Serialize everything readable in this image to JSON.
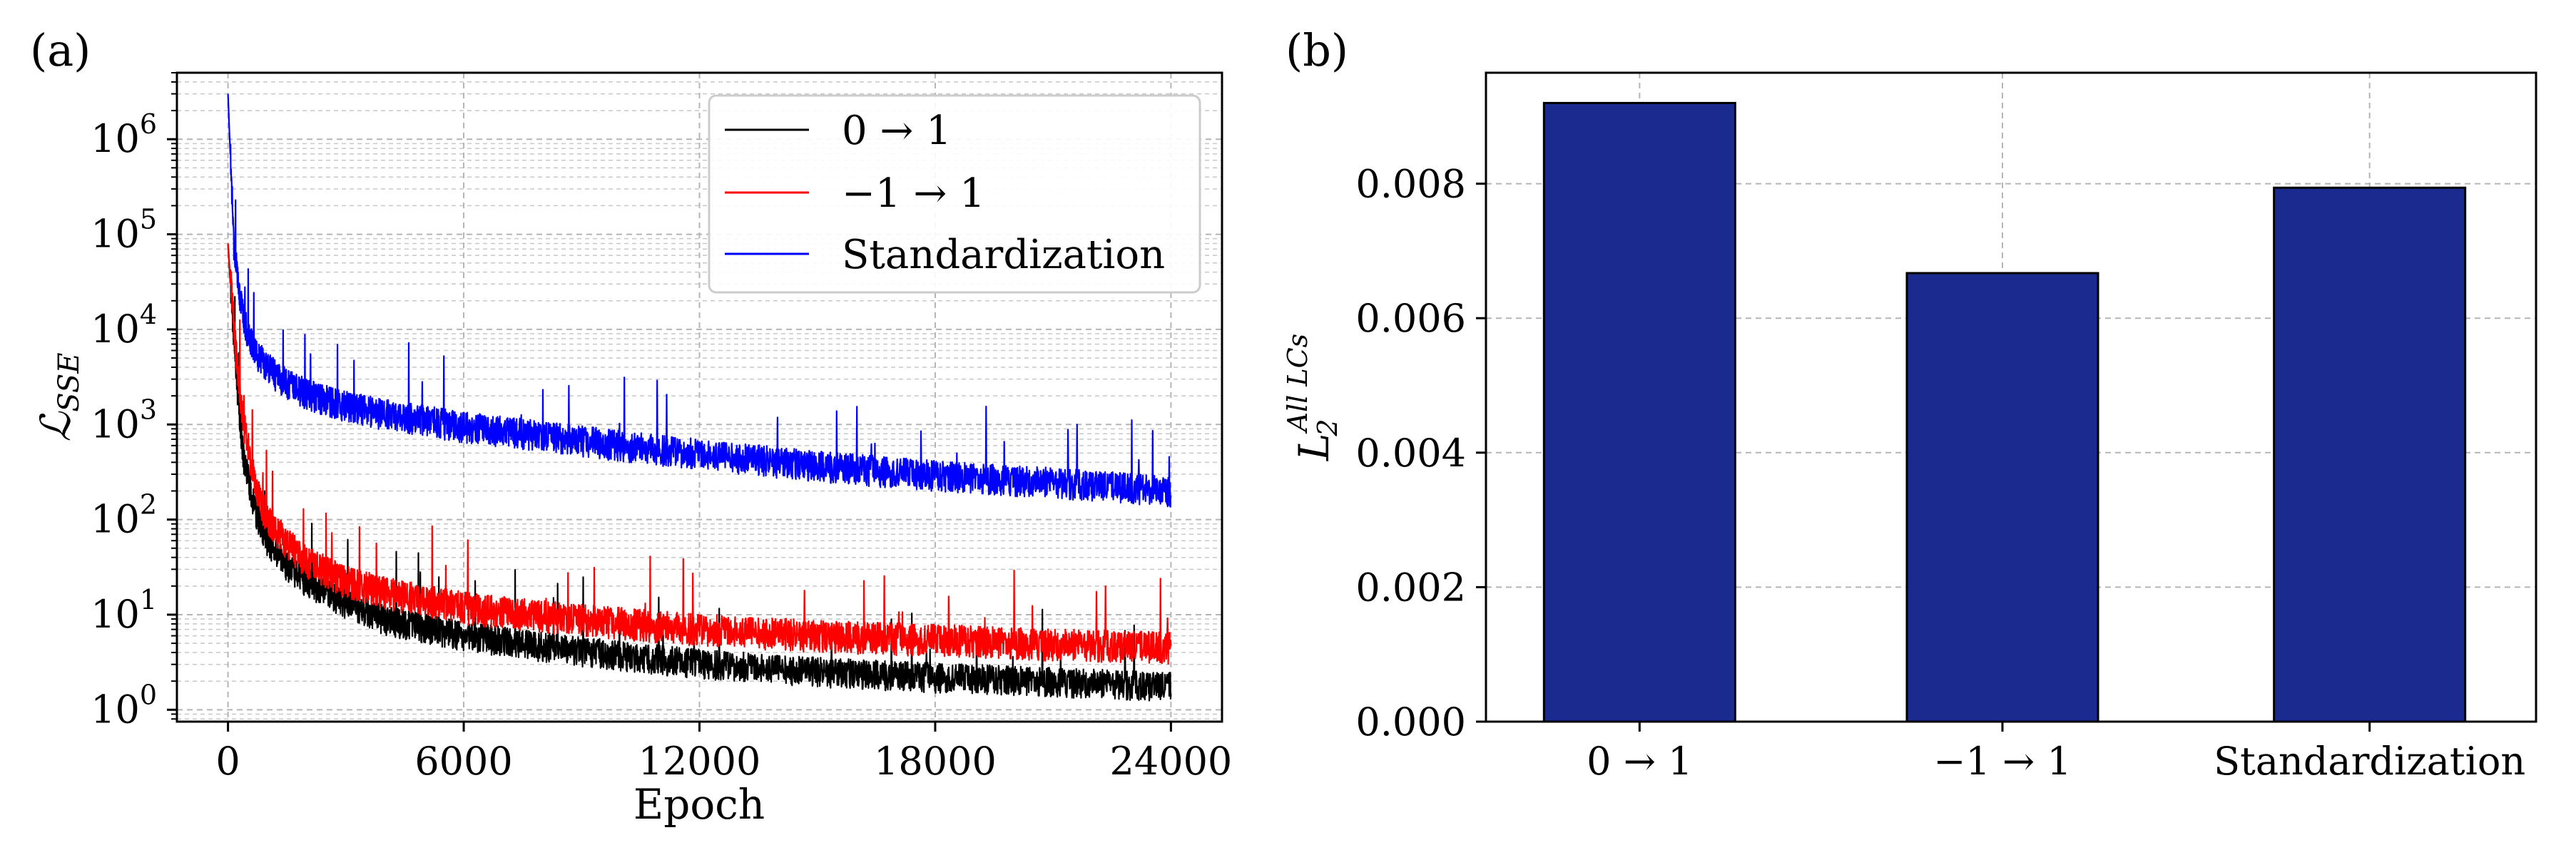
{
  "chart_data": [
    {
      "panel": "(a)",
      "type": "line",
      "xlabel": "Epoch",
      "ylabel": "ℒ",
      "ylabel_sub": "SSE",
      "yscale": "log",
      "xlim": [
        -1300,
        25300
      ],
      "ylim": [
        0.75,
        5000000
      ],
      "xticks": [
        0,
        6000,
        12000,
        18000,
        24000
      ],
      "xtick_labels": [
        "0",
        "6000",
        "12000",
        "18000",
        "24000"
      ],
      "yticks": [
        1,
        10,
        100,
        1000,
        10000,
        100000,
        1000000
      ],
      "ytick_labels": [
        {
          "base": "10",
          "exp": "0"
        },
        {
          "base": "10",
          "exp": "1"
        },
        {
          "base": "10",
          "exp": "2"
        },
        {
          "base": "10",
          "exp": "3"
        },
        {
          "base": "10",
          "exp": "4"
        },
        {
          "base": "10",
          "exp": "5"
        },
        {
          "base": "10",
          "exp": "6"
        }
      ],
      "grid": true,
      "legend_position": "top-right",
      "series": [
        {
          "name": "0 → 1",
          "legend_label": "0 → 1",
          "color": "#000000",
          "x": [
            0,
            200,
            400,
            700,
            1000,
            1500,
            2000,
            3000,
            4000,
            6000,
            8000,
            10000,
            12000,
            15000,
            18000,
            21000,
            24000
          ],
          "y": [
            80000,
            3000,
            400,
            110,
            55,
            30,
            20,
            12,
            8,
            5.5,
            4.2,
            3.4,
            2.8,
            2.3,
            2.0,
            1.8,
            1.6
          ],
          "noise": 0.55
        },
        {
          "name": "-1 → 1",
          "legend_label": "−1 → 1",
          "color": "#ff0000",
          "x": [
            0,
            200,
            400,
            700,
            1000,
            1500,
            2000,
            3000,
            4000,
            6000,
            8000,
            10000,
            12000,
            15000,
            18000,
            21000,
            24000
          ],
          "y": [
            80000,
            5000,
            900,
            200,
            90,
            50,
            32,
            20,
            15,
            10.5,
            8.5,
            7.2,
            6.2,
            5.3,
            4.8,
            4.3,
            4.0
          ],
          "noise": 0.65
        },
        {
          "name": "Standardization",
          "legend_label": "Standardization",
          "color": "#0000ff",
          "x": [
            0,
            150,
            300,
            500,
            800,
            1200,
            1600,
            2000,
            3000,
            4000,
            6000,
            8000,
            10000,
            12000,
            15000,
            18000,
            21000,
            24000
          ],
          "y": [
            3000000,
            70000,
            20000,
            8000,
            4500,
            3000,
            2300,
            1900,
            1400,
            1150,
            850,
            680,
            540,
            440,
            330,
            260,
            220,
            180
          ],
          "noise": 0.6
        }
      ]
    },
    {
      "panel": "(b)",
      "type": "bar",
      "categories": [
        "0 → 1",
        "−1 → 1",
        "Standardization"
      ],
      "values": [
        0.0092,
        0.00667,
        0.00794
      ],
      "bar_color": "#1a2a8f",
      "ylabel": "L",
      "ylabel_sub": "2",
      "ylabel_sup": "All LCs",
      "xlabel": "",
      "ylim": [
        0,
        0.00965
      ],
      "yticks": [
        0,
        0.002,
        0.004,
        0.006,
        0.008
      ],
      "ytick_labels": [
        "0.000",
        "0.002",
        "0.004",
        "0.006",
        "0.008"
      ],
      "grid": true
    }
  ]
}
